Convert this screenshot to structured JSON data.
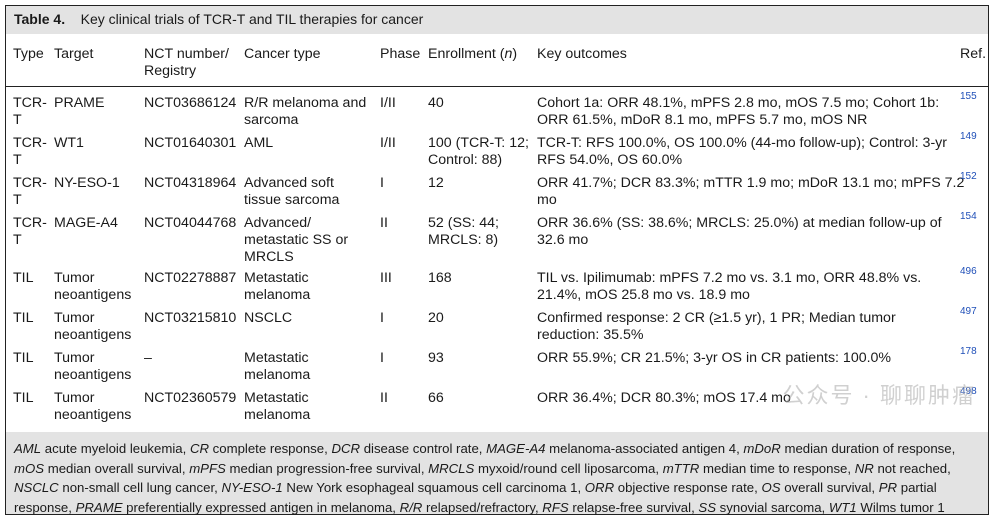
{
  "table": {
    "label": "Table 4.",
    "title": "Key clinical trials of TCR-T and TIL therapies for cancer",
    "headers": {
      "type": "Type",
      "target": "Target",
      "nct": "NCT number/\nRegistry",
      "cancer": "Cancer type",
      "phase": "Phase",
      "enrollment": "Enrollment (n)",
      "outcomes": "Key outcomes",
      "ref": "Ref."
    },
    "rows": [
      {
        "type": "TCR-\nT",
        "target": "PRAME",
        "nct": "NCT03686124",
        "cancer": "R/R melanoma and\nsarcoma",
        "phase": "I/II",
        "enrollment": "40",
        "outcomes": "Cohort 1a: ORR 48.1%, mPFS 2.8 mo, mOS 7.5 mo; Cohort 1b:\nORR 61.5%, mDoR 8.1 mo, mPFS 5.7 mo, mOS NR",
        "ref": "155"
      },
      {
        "type": "TCR-\nT",
        "target": "WT1",
        "nct": "NCT01640301",
        "cancer": "AML",
        "phase": "I/II",
        "enrollment": "100 (TCR-T: 12;\nControl: 88)",
        "outcomes": "TCR-T: RFS 100.0%, OS 100.0% (44-mo follow-up); Control: 3-yr\nRFS 54.0%, OS 60.0%",
        "ref": "149"
      },
      {
        "type": "TCR-\nT",
        "target": "NY-ESO-1",
        "nct": "NCT04318964",
        "cancer": "Advanced soft\ntissue sarcoma",
        "phase": "I",
        "enrollment": "12",
        "outcomes": "ORR 41.7%; DCR 83.3%; mTTR 1.9 mo; mDoR 13.1 mo; mPFS 7.2\nmo",
        "ref": "152"
      },
      {
        "type": "TCR-\nT",
        "target": "MAGE-A4",
        "nct": "NCT04044768",
        "cancer": "Advanced/\nmetastatic SS or\nMRCLS",
        "phase": "II",
        "enrollment": "52 (SS: 44;\nMRCLS: 8)",
        "outcomes": "ORR 36.6% (SS: 38.6%; MRCLS: 25.0%) at median follow-up of\n32.6 mo",
        "ref": "154"
      },
      {
        "type": "TIL",
        "target": "Tumor\nneoantigens",
        "nct": "NCT02278887",
        "cancer": "Metastatic\nmelanoma",
        "phase": "III",
        "enrollment": "168",
        "outcomes": "TIL vs. Ipilimumab: mPFS 7.2 mo vs. 3.1 mo, ORR 48.8% vs.\n21.4%, mOS 25.8 mo vs. 18.9 mo",
        "ref": "496"
      },
      {
        "type": "TIL",
        "target": "Tumor\nneoantigens",
        "nct": "NCT03215810",
        "cancer": "NSCLC",
        "phase": "I",
        "enrollment": "20",
        "outcomes": "Confirmed response: 2 CR (≥1.5 yr), 1 PR; Median tumor\nreduction: 35.5%",
        "ref": "497"
      },
      {
        "type": "TIL",
        "target": "Tumor\nneoantigens",
        "nct": "–",
        "cancer": "Metastatic\nmelanoma",
        "phase": "I",
        "enrollment": "93",
        "outcomes": "ORR 55.9%; CR 21.5%; 3-yr OS in CR patients: 100.0%",
        "ref": "178"
      },
      {
        "type": "TIL",
        "target": "Tumor\nneoantigens",
        "nct": "NCT02360579",
        "cancer": "Metastatic\nmelanoma",
        "phase": "II",
        "enrollment": "66",
        "outcomes": "ORR 36.4%; DCR 80.3%; mOS 17.4 mo",
        "ref": "498"
      }
    ],
    "footnote": [
      {
        "abbr": "AML",
        "def": "acute myeloid leukemia"
      },
      {
        "abbr": "CR",
        "def": "complete response"
      },
      {
        "abbr": "DCR",
        "def": "disease control rate"
      },
      {
        "abbr": "MAGE-A4",
        "def": "melanoma-associated antigen 4"
      },
      {
        "abbr": "mDoR",
        "def": "median duration of response"
      },
      {
        "abbr": "mOS",
        "def": "median overall survival"
      },
      {
        "abbr": "mPFS",
        "def": "median progression-free survival"
      },
      {
        "abbr": "MRCLS",
        "def": "myxoid/round cell liposarcoma"
      },
      {
        "abbr": "mTTR",
        "def": "median time to response"
      },
      {
        "abbr": "NR",
        "def": "not reached"
      },
      {
        "abbr": "NSCLC",
        "def": "non-small cell lung cancer"
      },
      {
        "abbr": "NY-ESO-1",
        "def": "New York esophageal squamous cell carcinoma 1"
      },
      {
        "abbr": "ORR",
        "def": "objective response rate"
      },
      {
        "abbr": "OS",
        "def": "overall survival"
      },
      {
        "abbr": "PR",
        "def": "partial response"
      },
      {
        "abbr": "PRAME",
        "def": "preferentially expressed antigen in melanoma"
      },
      {
        "abbr": "R/R",
        "def": "relapsed/refractory"
      },
      {
        "abbr": "RFS",
        "def": "relapse-free survival"
      },
      {
        "abbr": "SS",
        "def": "synovial sarcoma"
      },
      {
        "abbr": "WT1",
        "def": "Wilms tumor 1"
      }
    ]
  },
  "watermark": "公众号 · 聊聊肿瘤",
  "colors": {
    "header_bg": "#e3e3e3",
    "ref_link": "#1f4fb8"
  }
}
